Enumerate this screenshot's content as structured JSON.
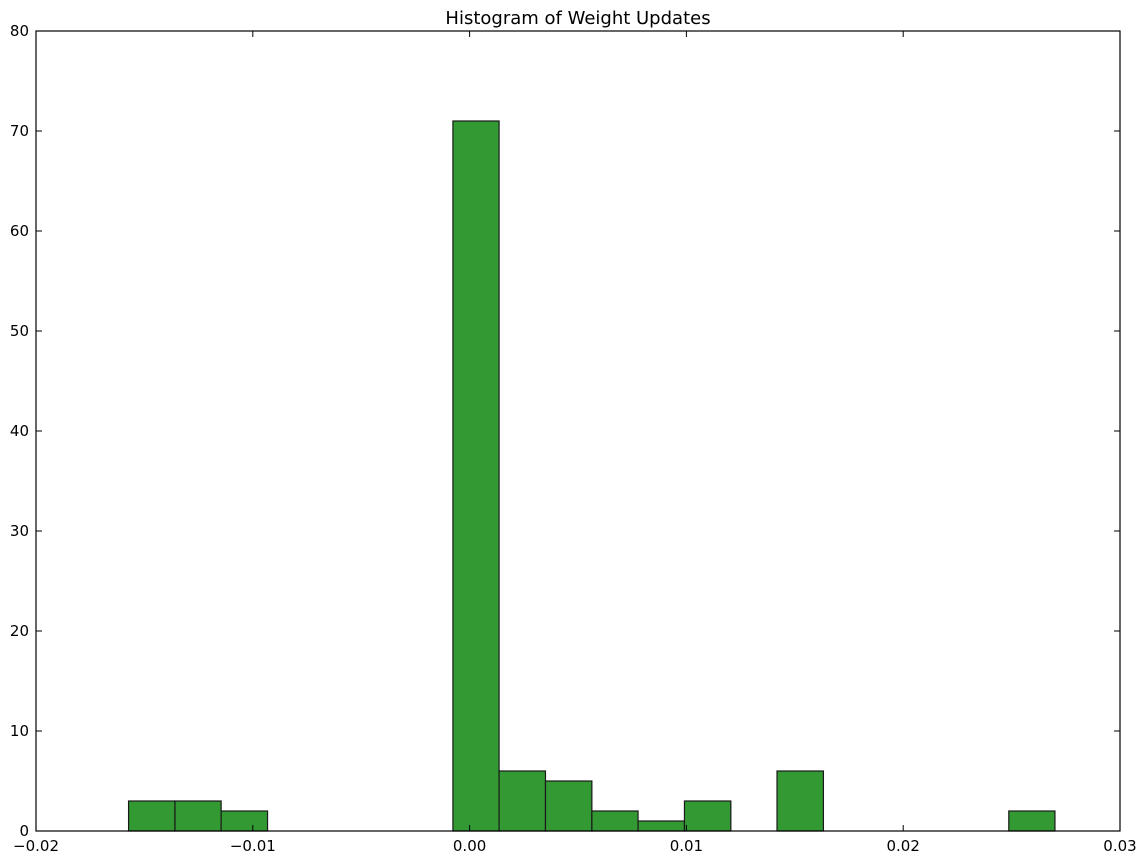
{
  "chart_data": {
    "type": "bar",
    "title": "Histogram of Weight Updates",
    "xlabel": "",
    "ylabel": "",
    "xlim": [
      -0.02,
      0.03
    ],
    "ylim": [
      0,
      80
    ],
    "grid": false,
    "bar_color": "#339933",
    "edge_color": "#1a1a1a",
    "x_ticks": [
      -0.02,
      -0.01,
      0.0,
      0.01,
      0.02,
      0.03
    ],
    "x_tick_labels": [
      "−0.02",
      "−0.01",
      "0.00",
      "0.01",
      "0.02",
      "0.03"
    ],
    "y_ticks": [
      0,
      10,
      20,
      30,
      40,
      50,
      60,
      70,
      80
    ],
    "y_tick_labels": [
      "0",
      "10",
      "20",
      "30",
      "40",
      "50",
      "60",
      "70",
      "80"
    ],
    "bins": [
      {
        "x0": -0.01573,
        "x1": -0.01359,
        "count": 3
      },
      {
        "x0": -0.01359,
        "x1": -0.01146,
        "count": 3
      },
      {
        "x0": -0.01146,
        "x1": -0.00932,
        "count": 2
      },
      {
        "x0": -0.00718,
        "x1": -0.00505,
        "count": 0
      },
      {
        "x0": -0.00505,
        "x1": -0.00291,
        "count": 0
      },
      {
        "x0": -0.00291,
        "x1": -0.00077,
        "count": 0
      },
      {
        "x0": -0.00077,
        "x1": 0.00136,
        "count": 71
      },
      {
        "x0": 0.00136,
        "x1": 0.0035,
        "count": 6
      },
      {
        "x0": 0.0035,
        "x1": 0.00564,
        "count": 5
      },
      {
        "x0": 0.00564,
        "x1": 0.00777,
        "count": 2
      },
      {
        "x0": 0.00777,
        "x1": 0.00991,
        "count": 1
      },
      {
        "x0": 0.00991,
        "x1": 0.01205,
        "count": 3
      },
      {
        "x0": 0.01418,
        "x1": 0.01632,
        "count": 6
      },
      {
        "x0": 0.02487,
        "x1": 0.027,
        "count": 2
      }
    ]
  }
}
